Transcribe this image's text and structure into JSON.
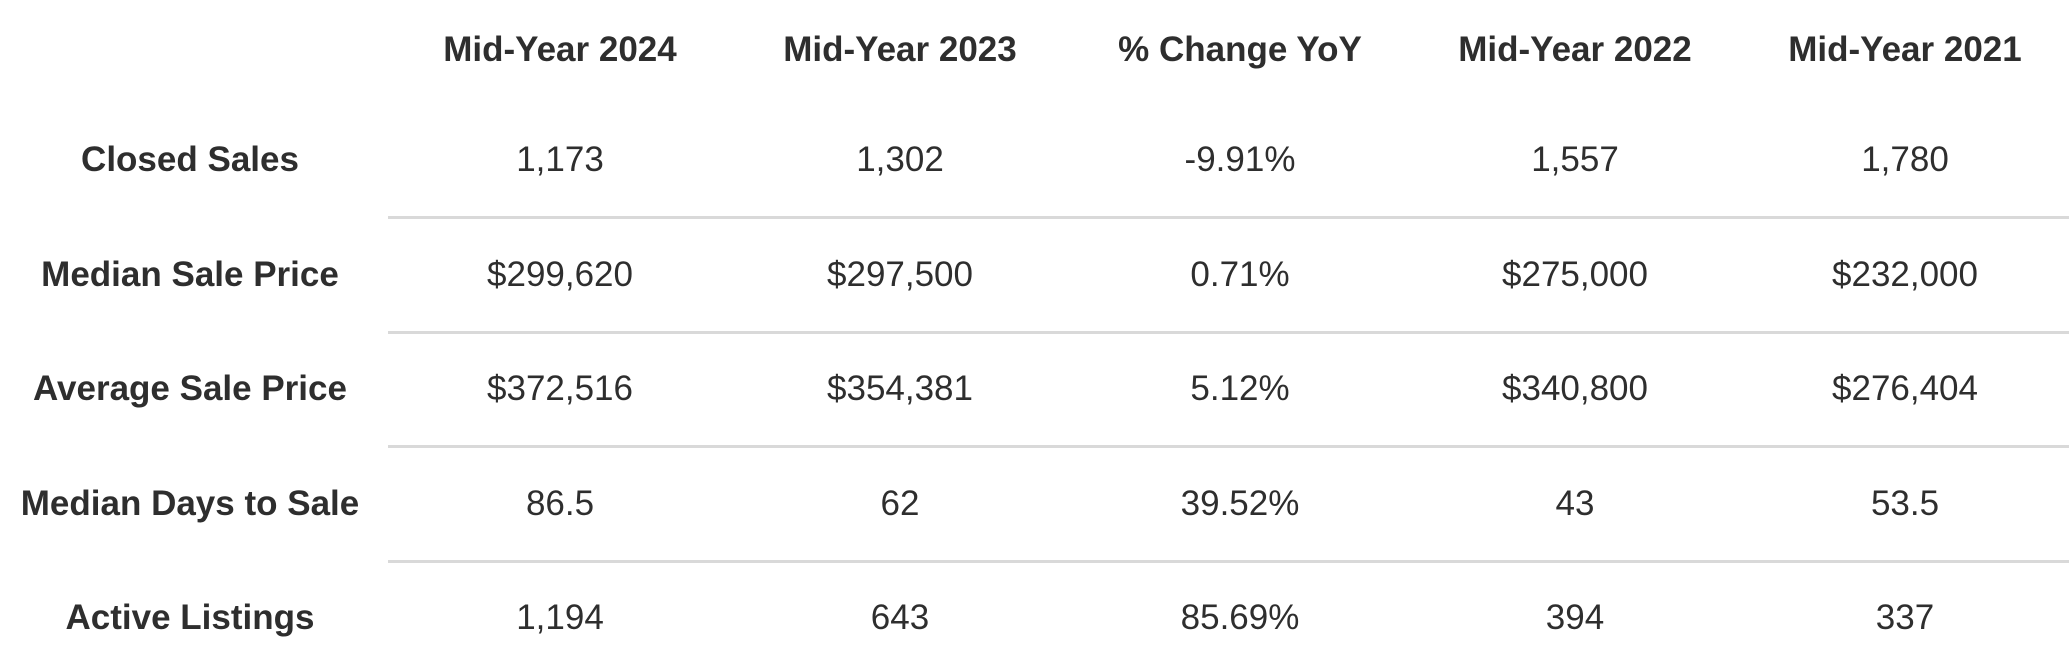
{
  "table": {
    "columns": [
      "Mid-Year 2024",
      "Mid-Year 2023",
      "% Change YoY",
      "Mid-Year 2022",
      "Mid-Year 2021"
    ],
    "rows": [
      {
        "label": "Closed Sales",
        "cells": [
          "1,173",
          "1,302",
          "-9.91%",
          "1,557",
          "1,780"
        ]
      },
      {
        "label": "Median Sale Price",
        "cells": [
          "$299,620",
          "$297,500",
          "0.71%",
          "$275,000",
          "$232,000"
        ]
      },
      {
        "label": "Average Sale Price",
        "cells": [
          "$372,516",
          "$354,381",
          "5.12%",
          "$340,800",
          "$276,404"
        ]
      },
      {
        "label": "Median Days to Sale",
        "cells": [
          "86.5",
          "62",
          "39.52%",
          "43",
          "53.5"
        ]
      },
      {
        "label": "Active Listings",
        "cells": [
          "1,194",
          "643",
          "85.69%",
          "394",
          "337"
        ]
      }
    ]
  }
}
